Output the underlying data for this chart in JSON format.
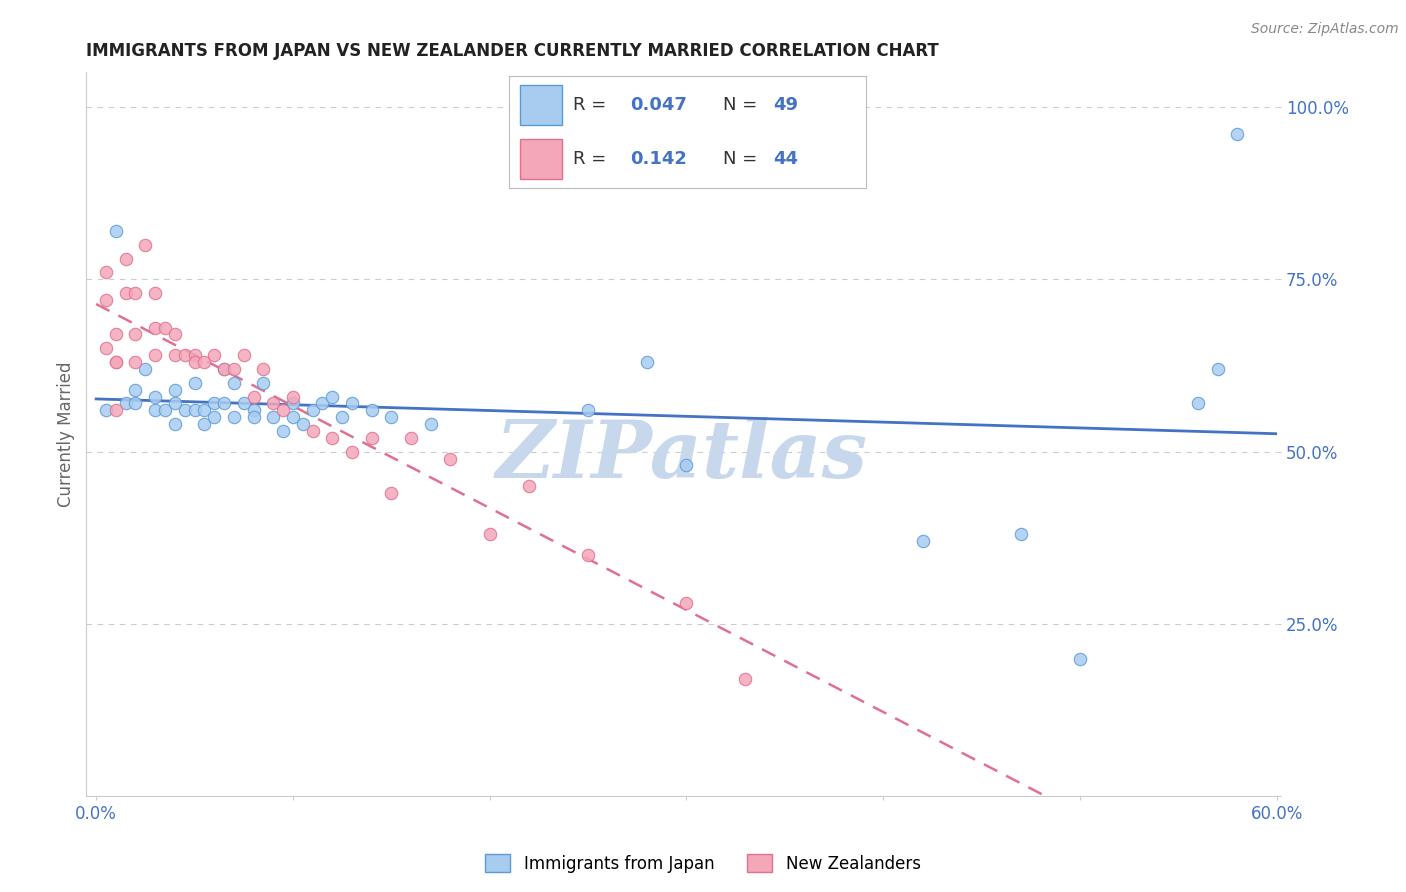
{
  "title": "IMMIGRANTS FROM JAPAN VS NEW ZEALANDER CURRENTLY MARRIED CORRELATION CHART",
  "source_text": "Source: ZipAtlas.com",
  "ylabel": "Currently Married",
  "y_tick_vals": [
    0.0,
    0.25,
    0.5,
    0.75,
    1.0
  ],
  "y_tick_labels": [
    "",
    "25.0%",
    "50.0%",
    "75.0%",
    "100.0%"
  ],
  "x_tick_vals": [
    0.0,
    0.1,
    0.2,
    0.3,
    0.4,
    0.5,
    0.6
  ],
  "x_tick_labels": [
    "0.0%",
    "",
    "",
    "",
    "",
    "",
    "60.0%"
  ],
  "blue_color": "#A8CCF0",
  "pink_color": "#F4A7B9",
  "blue_edge_color": "#5B9BD5",
  "pink_edge_color": "#E07090",
  "blue_line_color": "#4472C4",
  "pink_line_color": "#E07090",
  "grid_color": "#CCCCCC",
  "watermark_color": "#C8D8EC",
  "watermark_text": "ZIPatlas",
  "legend_blue_R": "R = 0.047",
  "legend_blue_N": "N = 49",
  "legend_pink_R": "R =  0.142",
  "legend_pink_N": "N = 44",
  "blue_label": "Immigrants from Japan",
  "pink_label": "New Zealanders",
  "blue_scatter_x": [
    0.005,
    0.01,
    0.015,
    0.02,
    0.02,
    0.025,
    0.03,
    0.03,
    0.035,
    0.04,
    0.04,
    0.04,
    0.045,
    0.05,
    0.05,
    0.055,
    0.055,
    0.06,
    0.06,
    0.065,
    0.065,
    0.07,
    0.07,
    0.075,
    0.08,
    0.08,
    0.085,
    0.09,
    0.095,
    0.1,
    0.1,
    0.105,
    0.11,
    0.115,
    0.12,
    0.125,
    0.13,
    0.14,
    0.15,
    0.17,
    0.25,
    0.28,
    0.3,
    0.42,
    0.47,
    0.5,
    0.56,
    0.57,
    0.58
  ],
  "blue_scatter_y": [
    0.56,
    0.82,
    0.57,
    0.57,
    0.59,
    0.62,
    0.58,
    0.56,
    0.56,
    0.59,
    0.57,
    0.54,
    0.56,
    0.6,
    0.56,
    0.56,
    0.54,
    0.57,
    0.55,
    0.62,
    0.57,
    0.6,
    0.55,
    0.57,
    0.56,
    0.55,
    0.6,
    0.55,
    0.53,
    0.57,
    0.55,
    0.54,
    0.56,
    0.57,
    0.58,
    0.55,
    0.57,
    0.56,
    0.55,
    0.54,
    0.56,
    0.63,
    0.48,
    0.37,
    0.38,
    0.2,
    0.57,
    0.62,
    0.96
  ],
  "pink_scatter_x": [
    0.005,
    0.005,
    0.005,
    0.01,
    0.01,
    0.01,
    0.01,
    0.015,
    0.015,
    0.02,
    0.02,
    0.02,
    0.025,
    0.03,
    0.03,
    0.03,
    0.035,
    0.04,
    0.04,
    0.045,
    0.05,
    0.05,
    0.055,
    0.06,
    0.065,
    0.07,
    0.075,
    0.08,
    0.085,
    0.09,
    0.095,
    0.1,
    0.11,
    0.12,
    0.13,
    0.14,
    0.15,
    0.16,
    0.18,
    0.2,
    0.22,
    0.25,
    0.3,
    0.33
  ],
  "pink_scatter_y": [
    0.76,
    0.72,
    0.65,
    0.67,
    0.63,
    0.63,
    0.56,
    0.78,
    0.73,
    0.73,
    0.67,
    0.63,
    0.8,
    0.73,
    0.68,
    0.64,
    0.68,
    0.67,
    0.64,
    0.64,
    0.64,
    0.63,
    0.63,
    0.64,
    0.62,
    0.62,
    0.64,
    0.58,
    0.62,
    0.57,
    0.56,
    0.58,
    0.53,
    0.52,
    0.5,
    0.52,
    0.44,
    0.52,
    0.49,
    0.38,
    0.45,
    0.35,
    0.28,
    0.17
  ],
  "xlim": [
    -0.005,
    0.6
  ],
  "ylim": [
    0.0,
    1.05
  ]
}
